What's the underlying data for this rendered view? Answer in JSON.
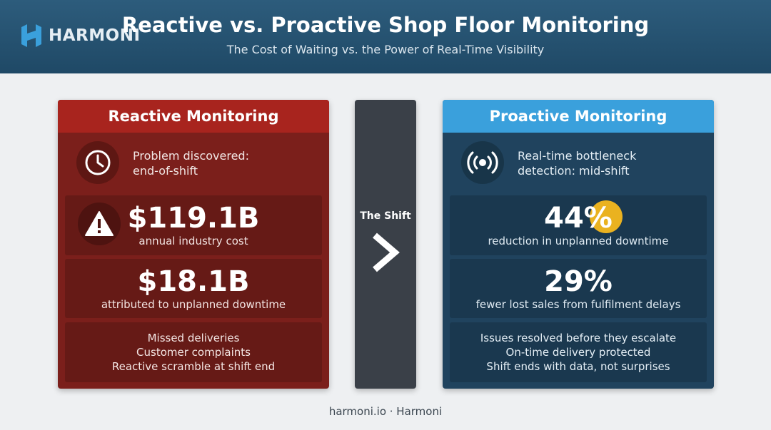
{
  "brand": {
    "name": "HARMONI"
  },
  "header": {
    "title": "Reactive vs. Proactive Shop Floor Monitoring",
    "subtitle": "The Cost of Waiting vs. the Power of Real-Time Visibility"
  },
  "reactive": {
    "heading": "Reactive Monitoring",
    "intro_line1": "Problem discovered:",
    "intro_line2": "end-of-shift",
    "stat1_value": "$119.1B",
    "stat1_caption": "annual industry cost",
    "stat2_value": "$18.1B",
    "stat2_caption": "attributed to unplanned downtime",
    "list": [
      "Missed deliveries",
      "Customer complaints",
      "Reactive scramble at shift end"
    ],
    "icons": {
      "intro": "clock-icon",
      "stat1": "warning-icon"
    },
    "colors": {
      "panel": "#7b1f1b",
      "header": "#a8241e"
    }
  },
  "shift": {
    "label": "The Shift",
    "icon": "chevron-right-icon"
  },
  "proactive": {
    "heading": "Proactive Monitoring",
    "intro_line1": "Real-time bottleneck",
    "intro_line2": "detection: mid-shift",
    "stat1_value": "44%",
    "stat1_caption": "reduction in unplanned downtime",
    "stat2_value": "29%",
    "stat2_caption": "fewer lost sales from fulfilment delays",
    "list": [
      "Issues resolved before they escalate",
      "On-time delivery protected",
      "Shift ends with data, not surprises"
    ],
    "icons": {
      "intro": "broadcast-signal-icon"
    },
    "colors": {
      "panel": "#20435e",
      "header": "#3aa0dc",
      "highlight": "#f6b81e"
    }
  },
  "footer": {
    "text": "harmoni.io · Harmoni"
  }
}
